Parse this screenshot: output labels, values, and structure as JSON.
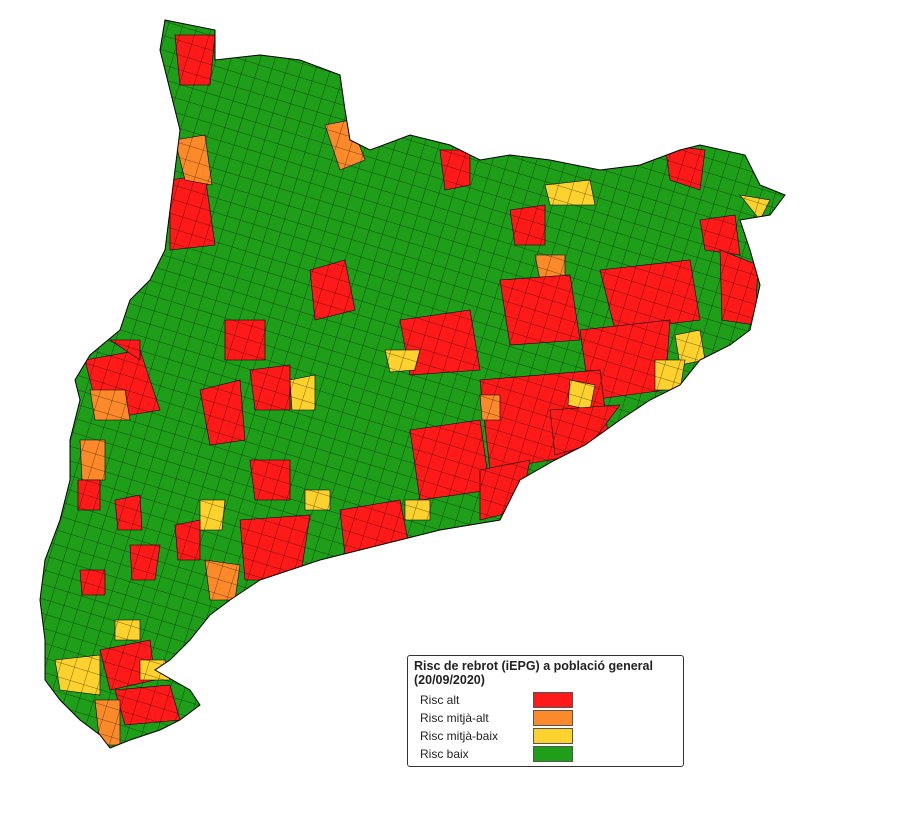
{
  "legend": {
    "title": "Risc de rebrot (iEPG) a població general",
    "subtitle": "(20/09/2020)",
    "items": [
      {
        "label": "Risc alt",
        "color": "#ff1a1a"
      },
      {
        "label": "Risc mitjà-alt",
        "color": "#fd8a2a"
      },
      {
        "label": "Risc mitjà-baix",
        "color": "#fdd12e"
      },
      {
        "label": "Risc baix",
        "color": "#1f9e1a"
      }
    ]
  }
}
